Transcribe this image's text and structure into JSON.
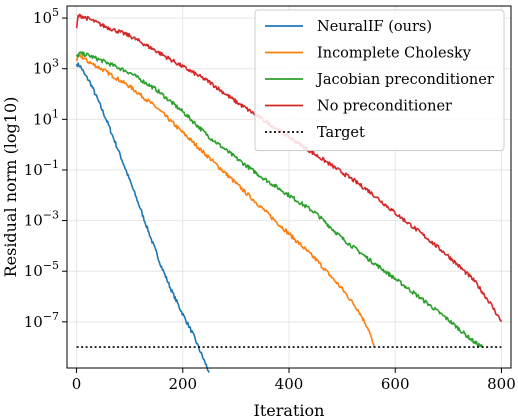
{
  "chart_data": {
    "type": "line",
    "xlabel": "Iteration",
    "ylabel": "Residual norm (log10)",
    "yscale": "log",
    "xlim": [
      -18,
      818
    ],
    "ylim": [
      1.5e-09,
      300000.0
    ],
    "xticks": [
      0,
      200,
      400,
      600,
      800
    ],
    "xtick_labels": [
      "0",
      "200",
      "400",
      "600",
      "800"
    ],
    "yticks": [
      1e-07,
      1e-05,
      0.001,
      0.1,
      10.0,
      1000.0,
      100000.0
    ],
    "ytick_labels": [
      {
        "base": "10",
        "exp": "−7"
      },
      {
        "base": "10",
        "exp": "−5"
      },
      {
        "base": "10",
        "exp": "−3"
      },
      {
        "base": "10",
        "exp": "−1"
      },
      {
        "base": "10",
        "exp": "1"
      },
      {
        "base": "10",
        "exp": "3"
      },
      {
        "base": "10",
        "exp": "5"
      }
    ],
    "grid": true,
    "legend_position": "top-right",
    "series": [
      {
        "name": "NeuralIF (ours)",
        "color": "#1f77b4",
        "style": "solid",
        "points": [
          [
            0,
            1500.0
          ],
          [
            5,
            1400.0
          ],
          [
            10,
            1000.0
          ],
          [
            15,
            600.0
          ],
          [
            25,
            300.0
          ],
          [
            40,
            60.0
          ],
          [
            60,
            6
          ],
          [
            80,
            0.5
          ],
          [
            100,
            0.04
          ],
          [
            120,
            0.003
          ],
          [
            140,
            0.0002
          ],
          [
            160,
            1.5e-05
          ],
          [
            180,
            1.5e-06
          ],
          [
            200,
            2e-07
          ],
          [
            220,
            3e-08
          ],
          [
            240,
            3e-09
          ],
          [
            250,
            1e-09
          ]
        ]
      },
      {
        "name": "Incomplete Cholesky",
        "color": "#ff7f0e",
        "style": "solid",
        "points": [
          [
            0,
            2000.0
          ],
          [
            5,
            3000.0
          ],
          [
            10,
            3000.0
          ],
          [
            20,
            2000.0
          ],
          [
            50,
            900.0
          ],
          [
            100,
            200.0
          ],
          [
            150,
            30.0
          ],
          [
            200,
            3
          ],
          [
            250,
            0.3
          ],
          [
            300,
            0.03
          ],
          [
            350,
            0.003
          ],
          [
            400,
            0.0003
          ],
          [
            450,
            3e-05
          ],
          [
            500,
            2e-06
          ],
          [
            530,
            3e-07
          ],
          [
            550,
            5e-08
          ],
          [
            560,
            1e-08
          ]
        ]
      },
      {
        "name": "Jacobian preconditioner",
        "color": "#2ca02c",
        "style": "solid",
        "points": [
          [
            0,
            3000.0
          ],
          [
            5,
            4000.0
          ],
          [
            20,
            3500.0
          ],
          [
            50,
            2000.0
          ],
          [
            100,
            700.0
          ],
          [
            150,
            150.0
          ],
          [
            200,
            20.0
          ],
          [
            250,
            2
          ],
          [
            300,
            0.3
          ],
          [
            350,
            0.05
          ],
          [
            400,
            0.01
          ],
          [
            450,
            0.002
          ],
          [
            500,
            0.0002
          ],
          [
            550,
            3e-05
          ],
          [
            600,
            5e-06
          ],
          [
            650,
            8e-07
          ],
          [
            700,
            1.2e-07
          ],
          [
            750,
            1.5e-08
          ],
          [
            765,
            1e-08
          ]
        ]
      },
      {
        "name": "No preconditioner",
        "color": "#d62728",
        "style": "solid",
        "points": [
          [
            0,
            40000.0
          ],
          [
            3,
            120000.0
          ],
          [
            10,
            120000.0
          ],
          [
            30,
            80000.0
          ],
          [
            50,
            50000.0
          ],
          [
            100,
            20000.0
          ],
          [
            150,
            5000.0
          ],
          [
            200,
            1200.0
          ],
          [
            250,
            300.0
          ],
          [
            300,
            50.0
          ],
          [
            350,
            10.0
          ],
          [
            400,
            2
          ],
          [
            450,
            0.4
          ],
          [
            500,
            0.08
          ],
          [
            550,
            0.015
          ],
          [
            600,
            0.002
          ],
          [
            650,
            0.0003
          ],
          [
            700,
            4e-05
          ],
          [
            750,
            4e-06
          ],
          [
            780,
            5e-07
          ],
          [
            800,
            1e-07
          ]
        ]
      },
      {
        "name": "Target",
        "color": "#000000",
        "style": "dotted",
        "points": [
          [
            0,
            1e-08
          ],
          [
            800,
            1e-08
          ]
        ]
      }
    ]
  }
}
